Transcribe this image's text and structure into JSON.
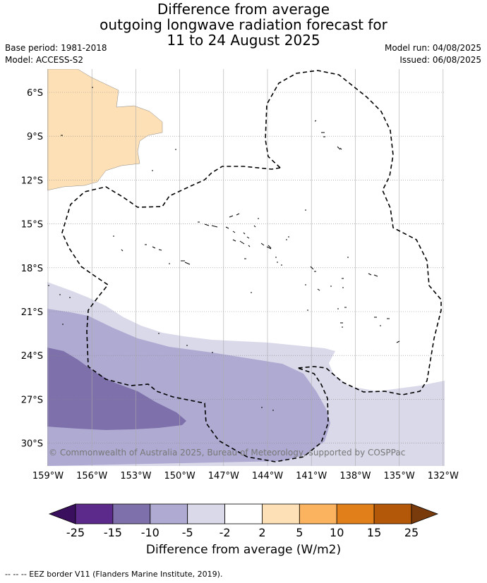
{
  "title": {
    "line1": "Difference from average",
    "line2": "outgoing longwave radiation forecast for",
    "line3": "11 to 24 August 2025"
  },
  "meta": {
    "base_period": "Base period: 1981-2018",
    "model": "Model: ACCESS-S2",
    "model_run": "Model run: 04/08/2025",
    "issued": "Issued: 06/08/2025"
  },
  "map": {
    "lat_ticks": [
      "6°S",
      "9°S",
      "12°S",
      "15°S",
      "18°S",
      "21°S",
      "24°S",
      "27°S",
      "30°S"
    ],
    "lon_ticks": [
      "159°W",
      "156°W",
      "153°W",
      "150°W",
      "147°W",
      "144°W",
      "141°W",
      "138°W",
      "135°W",
      "132°W"
    ],
    "copyright": "© Commonwealth of Australia 2025, Bureau of Meteorology, supported by COSPPac"
  },
  "colorbar": {
    "labels": [
      "-25",
      "-15",
      "-10",
      "-5",
      "-2",
      "2",
      "5",
      "10",
      "15",
      "25"
    ],
    "colors": [
      "#5b2a8a",
      "#7e70aa",
      "#aeaad2",
      "#d9d9ea",
      "#ffffff",
      "#fde0b6",
      "#fbb35f",
      "#e1801a",
      "#b35709"
    ],
    "low_extend_color": "#3a0f5e",
    "high_extend_color": "#7a3b0c",
    "title": "Difference from average (W/m2)"
  },
  "footnote": "--  --  -- EEZ border V11 (Flanders Marine Institute, 2019)."
}
